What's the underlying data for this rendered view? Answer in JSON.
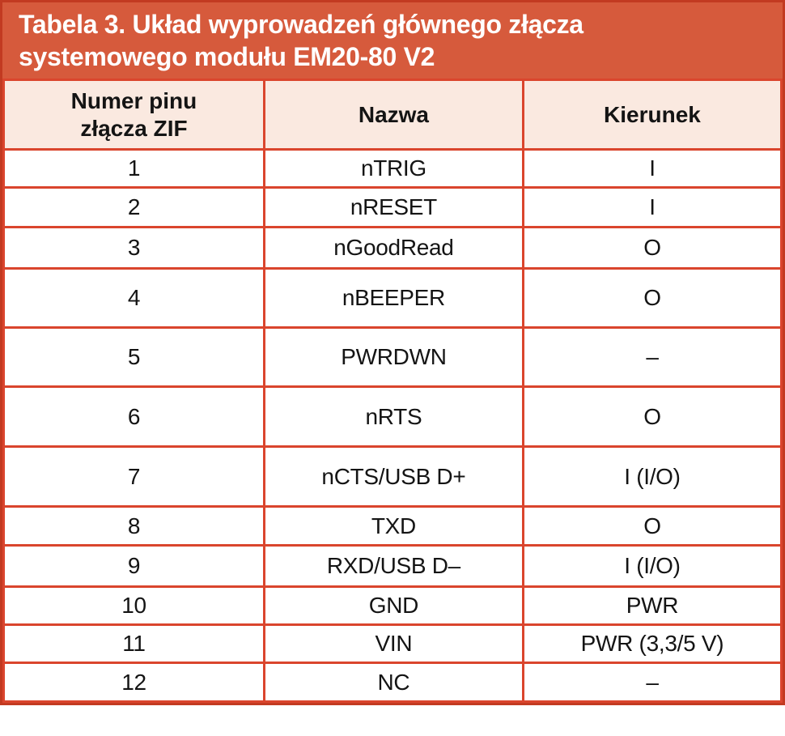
{
  "colors": {
    "accent": "#d65a3c",
    "outer_border": "#c23a21",
    "grid_border": "#da452d",
    "header_bg": "#fae9e0",
    "row_bg": "#ffffff",
    "title_text": "#ffffff",
    "body_text": "#141414"
  },
  "header": {
    "title_line1": "Tabela 3. Układ wyprowadzeń głównego złącza",
    "title_line2": "systemowego modułu EM20-80 V2"
  },
  "table": {
    "columns": [
      {
        "line1": "Numer pinu",
        "line2": "złącza ZIF"
      },
      {
        "line1": "Nazwa"
      },
      {
        "line1": "Kierunek"
      }
    ],
    "rows": [
      {
        "pin": "1",
        "name": "nTRIG",
        "dir": "I"
      },
      {
        "pin": "2",
        "name": "nRESET",
        "dir": "I"
      },
      {
        "pin": "3",
        "name": "nGoodRead",
        "dir": "O"
      },
      {
        "pin": "4",
        "name": "nBEEPER",
        "dir": "O"
      },
      {
        "pin": "5",
        "name": "PWRDWN",
        "dir": "–"
      },
      {
        "pin": "6",
        "name": "nRTS",
        "dir": "O"
      },
      {
        "pin": "7",
        "name": "nCTS/USB D+",
        "dir": "I (I/O)"
      },
      {
        "pin": "8",
        "name": "TXD",
        "dir": "O"
      },
      {
        "pin": "9",
        "name": "RXD/USB D–",
        "dir": "I (I/O)"
      },
      {
        "pin": "10",
        "name": "GND",
        "dir": "PWR"
      },
      {
        "pin": "11",
        "name": "VIN",
        "dir": "PWR (3,3/5 V)"
      },
      {
        "pin": "12",
        "name": "NC",
        "dir": "–"
      }
    ]
  },
  "chart_data": {
    "type": "table",
    "title": "Tabela 3. Układ wyprowadzeń głównego złącza systemowego modułu EM20-80 V2",
    "columns": [
      "Numer pinu złącza ZIF",
      "Nazwa",
      "Kierunek"
    ],
    "rows": [
      [
        "1",
        "nTRIG",
        "I"
      ],
      [
        "2",
        "nRESET",
        "I"
      ],
      [
        "3",
        "nGoodRead",
        "O"
      ],
      [
        "4",
        "nBEEPER",
        "O"
      ],
      [
        "5",
        "PWRDWN",
        "–"
      ],
      [
        "6",
        "nRTS",
        "O"
      ],
      [
        "7",
        "nCTS/USB D+",
        "I (I/O)"
      ],
      [
        "8",
        "TXD",
        "O"
      ],
      [
        "9",
        "RXD/USB D–",
        "I (I/O)"
      ],
      [
        "10",
        "GND",
        "PWR"
      ],
      [
        "11",
        "VIN",
        "PWR (3,3/5 V)"
      ],
      [
        "12",
        "NC",
        "–"
      ]
    ]
  }
}
